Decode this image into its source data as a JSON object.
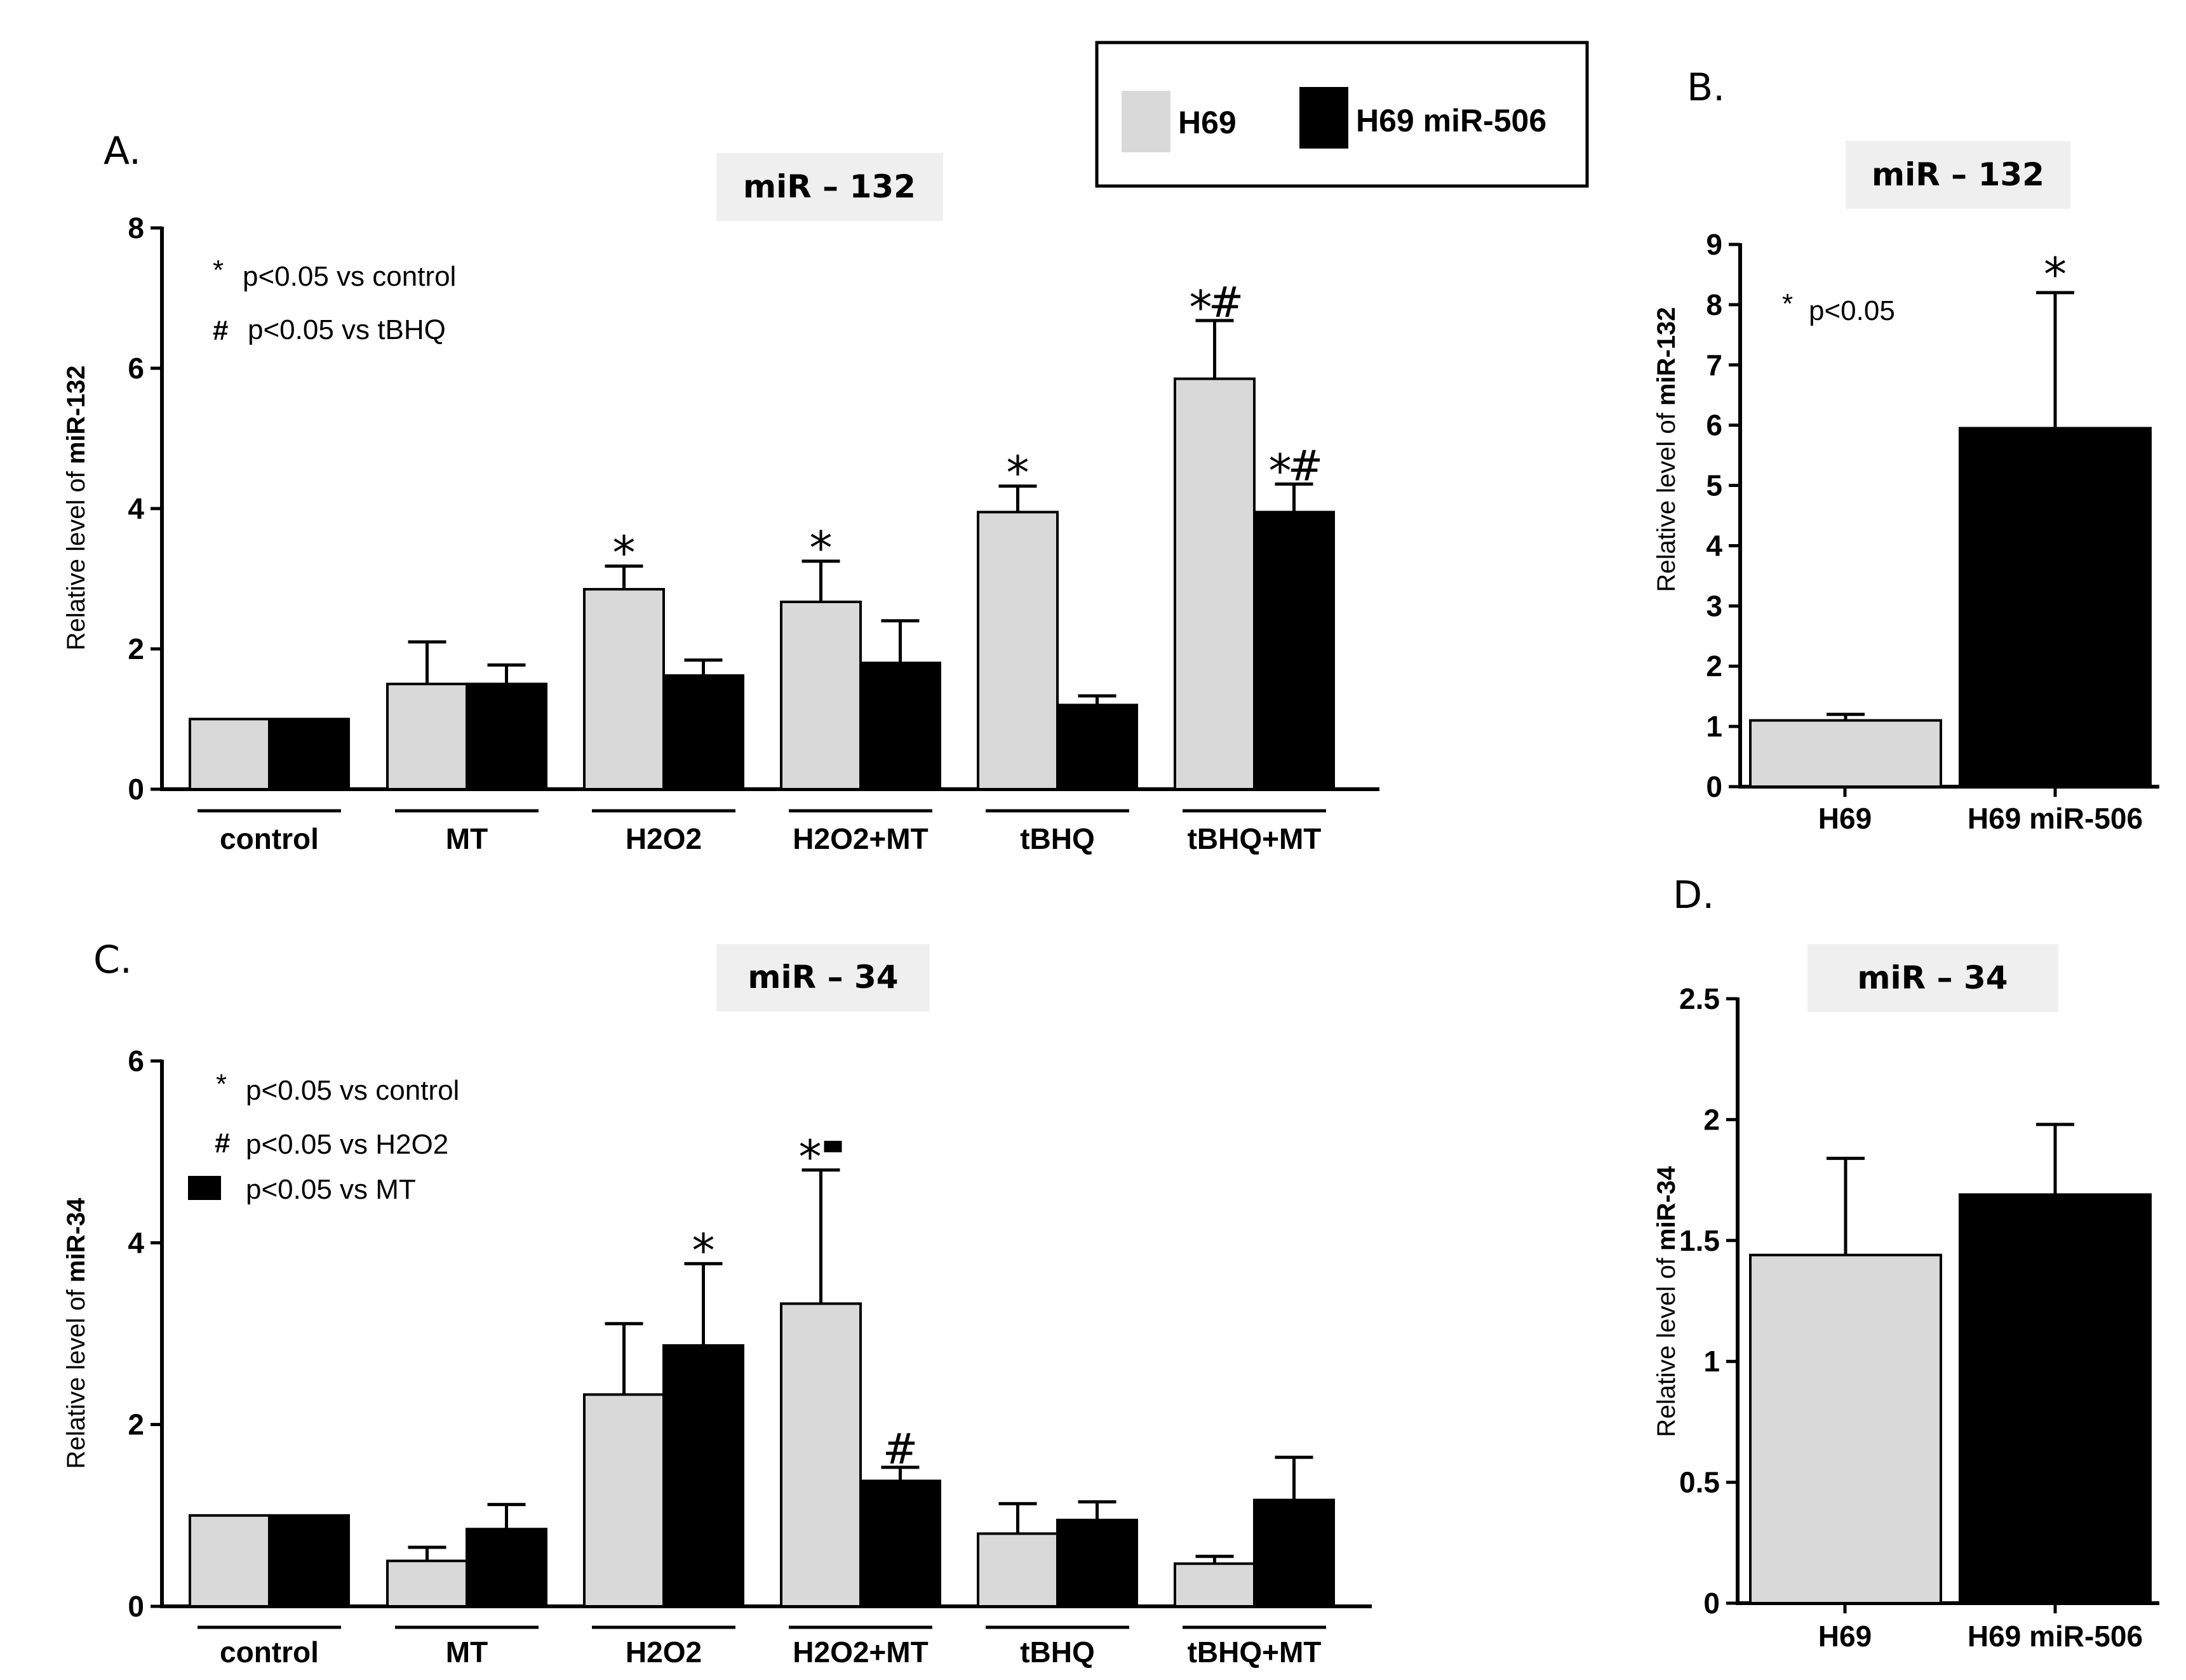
{
  "colors": {
    "h69": "#d9d9d9",
    "h69_mir506": "#000000",
    "title_bg": "#efefef"
  },
  "legend": {
    "items": [
      {
        "label": "H69",
        "color": "#d9d9d9"
      },
      {
        "label": "H69 miR-506",
        "color": "#000000"
      }
    ]
  },
  "chart_data": [
    {
      "panel": "A.",
      "title": "miR – 132",
      "type": "bar",
      "ylabel_plain": "Relative level of ",
      "ylabel_bold": "miR-132",
      "ylim": [
        0,
        8
      ],
      "yticks": [
        0,
        2,
        4,
        6,
        8
      ],
      "yticks_labels": [
        "0",
        "2",
        "4",
        "6",
        "8"
      ],
      "categories": [
        "control",
        "MT",
        "H2O2",
        "H2O2+MT",
        "tBHQ",
        "tBHQ+MT"
      ],
      "series": [
        {
          "name": "H69",
          "values": [
            1.0,
            1.5,
            2.85,
            2.67,
            3.95,
            5.85
          ],
          "errors": [
            0,
            0.6,
            0.33,
            0.58,
            0.37,
            0.83
          ],
          "marks": [
            "",
            "",
            "*",
            "*",
            "*",
            "*#"
          ]
        },
        {
          "name": "H69 miR-506",
          "values": [
            1.0,
            1.5,
            1.62,
            1.8,
            1.2,
            3.95
          ],
          "errors": [
            0,
            0.27,
            0.22,
            0.6,
            0.13,
            0.4
          ],
          "marks": [
            "",
            "",
            "",
            "",
            "",
            "*#"
          ]
        }
      ],
      "notes": [
        {
          "symbol": "*",
          "text": "p<0.05 vs control"
        },
        {
          "symbol": "#",
          "text": "p<0.05 vs tBHQ"
        }
      ]
    },
    {
      "panel": "B.",
      "title": "miR – 132",
      "type": "bar",
      "ylabel_plain": "Relative level of ",
      "ylabel_bold": "miR-132",
      "ylim": [
        0,
        9
      ],
      "yticks": [
        0,
        1,
        2,
        3,
        4,
        5,
        6,
        7,
        8,
        9
      ],
      "yticks_labels": [
        "0",
        "1",
        "2",
        "3",
        "4",
        "5",
        "6",
        "7",
        "8",
        "9"
      ],
      "categories": [
        "H69",
        "H69 miR-506"
      ],
      "values": [
        1.1,
        5.95
      ],
      "errors": [
        0.1,
        2.25
      ],
      "marks": [
        "",
        "*"
      ],
      "notes": [
        {
          "symbol": "*",
          "text": "p<0.05"
        }
      ]
    },
    {
      "panel": "C.",
      "title": "miR – 34",
      "type": "bar",
      "ylabel_plain": "Relative level of ",
      "ylabel_bold": "miR-34",
      "ylim": [
        0,
        6
      ],
      "yticks": [
        0,
        2,
        4,
        6
      ],
      "yticks_labels": [
        "0",
        "2",
        "4",
        "6"
      ],
      "categories": [
        "control",
        "MT",
        "H2O2",
        "H2O2+MT",
        "tBHQ",
        "tBHQ+MT"
      ],
      "series": [
        {
          "name": "H69",
          "values": [
            1.0,
            0.5,
            2.33,
            3.33,
            0.8,
            0.47
          ],
          "errors": [
            0,
            0.15,
            0.78,
            1.47,
            0.33,
            0.08
          ],
          "marks": [
            "",
            "",
            "",
            "*■",
            "",
            ""
          ]
        },
        {
          "name": "H69 miR-506",
          "values": [
            1.0,
            0.85,
            2.87,
            1.38,
            0.95,
            1.17
          ],
          "errors": [
            0,
            0.27,
            0.9,
            0.15,
            0.2,
            0.47
          ],
          "marks": [
            "",
            "",
            "*",
            "#",
            "",
            ""
          ]
        }
      ],
      "notes": [
        {
          "symbol": "*",
          "text": "p<0.05 vs control"
        },
        {
          "symbol": "#",
          "text": "p<0.05 vs H2O2"
        },
        {
          "symbol": "■",
          "text": "p<0.05 vs MT"
        }
      ]
    },
    {
      "panel": "D.",
      "title": "miR – 34",
      "type": "bar",
      "ylabel_plain": "Relative level of ",
      "ylabel_bold": "miR-34",
      "ylim": [
        0,
        2.5
      ],
      "yticks": [
        0,
        0.5,
        1,
        1.5,
        2,
        2.5
      ],
      "yticks_labels": [
        "0",
        "0.5",
        "1",
        "1.5",
        "2",
        "2.5"
      ],
      "categories": [
        "H69",
        "H69 miR-506"
      ],
      "values": [
        1.44,
        1.69
      ],
      "errors": [
        0.4,
        0.29
      ],
      "marks": [
        "",
        ""
      ],
      "notes": []
    }
  ]
}
